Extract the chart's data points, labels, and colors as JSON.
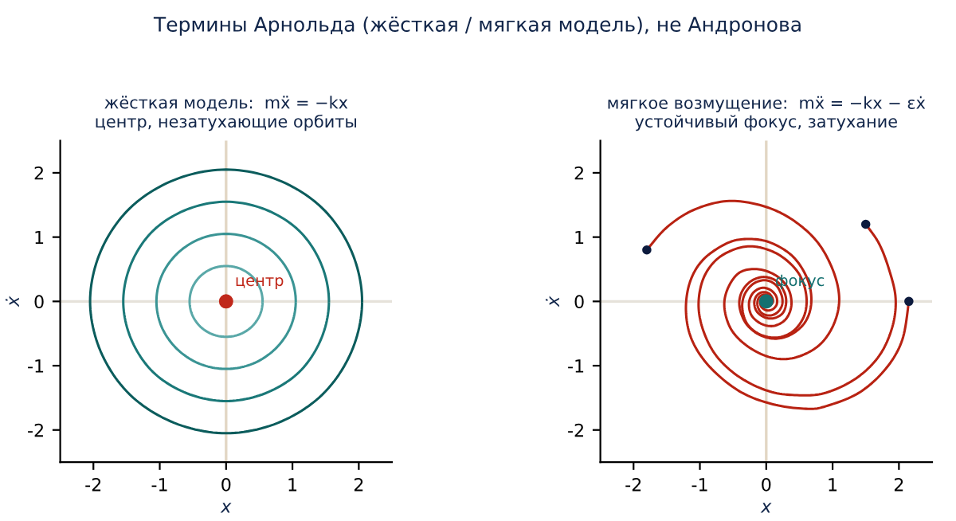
{
  "chart_data": [
    {
      "type": "line",
      "title": "жёсткая модель:  mẍ = −kx\nцентр, незатухающие орбиты",
      "xlabel": "x",
      "ylabel": "ẋ",
      "xlim": [
        -2.5,
        2.5
      ],
      "ylim": [
        -2.5,
        2.5
      ],
      "xticks": [
        -2,
        -1,
        0,
        1,
        2
      ],
      "yticks": [
        -2,
        -1,
        0,
        1,
        2
      ],
      "ref_lines": [
        {
          "axis": "x",
          "value": 0,
          "color": "#e2d6c4"
        },
        {
          "axis": "y",
          "value": 0,
          "color": "#e6e2da"
        }
      ],
      "annotations": [
        "Термины Арнольда (жёсткая / мягкая модель), не Андронова",
        {
          "text": "центр",
          "x": 0,
          "y": 0
        }
      ],
      "series": [
        {
          "type": "line",
          "color": "#5aa8a8",
          "x": [
            0.55,
            0.51,
            0.39,
            0.21,
            0,
            -0.21,
            -0.39,
            -0.51,
            -0.55,
            -0.51,
            -0.39,
            -0.21,
            0,
            0.21,
            0.39,
            0.51,
            0.55
          ],
          "values": [
            0,
            0.21,
            0.39,
            0.51,
            0.55,
            0.51,
            0.39,
            0.21,
            0,
            -0.21,
            -0.39,
            -0.51,
            -0.55,
            -0.51,
            -0.39,
            -0.21,
            0
          ]
        },
        {
          "type": "line",
          "color": "#3a9494",
          "x": [
            1.05,
            0.97,
            0.74,
            0.4,
            0,
            -0.4,
            -0.74,
            -0.97,
            -1.05,
            -0.97,
            -0.74,
            -0.4,
            0,
            0.4,
            0.74,
            0.97,
            1.05
          ],
          "values": [
            0,
            0.4,
            0.74,
            0.97,
            1.05,
            0.97,
            0.74,
            0.4,
            0,
            -0.4,
            -0.74,
            -0.97,
            -1.05,
            -0.97,
            -0.74,
            -0.4,
            0
          ]
        },
        {
          "type": "line",
          "color": "#1a7878",
          "x": [
            1.55,
            1.43,
            1.1,
            0.59,
            0,
            -0.59,
            -1.1,
            -1.43,
            -1.55,
            -1.43,
            -1.1,
            -0.59,
            0,
            0.59,
            1.1,
            1.43,
            1.55
          ],
          "values": [
            0,
            0.59,
            1.1,
            1.43,
            1.55,
            1.43,
            1.1,
            0.59,
            0,
            -0.59,
            -1.1,
            -1.43,
            -1.55,
            -1.43,
            -1.1,
            -0.59,
            0
          ]
        },
        {
          "type": "line",
          "color": "#0b5c5c",
          "x": [
            2.05,
            1.89,
            1.45,
            0.78,
            0,
            -0.78,
            -1.45,
            -1.89,
            -2.05,
            -1.89,
            -1.45,
            -0.78,
            0,
            0.78,
            1.45,
            1.89,
            2.05
          ],
          "values": [
            0,
            0.78,
            1.45,
            1.89,
            2.05,
            1.89,
            1.45,
            0.78,
            0,
            -0.78,
            -1.45,
            -1.89,
            -2.05,
            -1.89,
            -1.45,
            -0.78,
            0
          ]
        },
        {
          "type": "scatter",
          "marker": "circle",
          "color": "#c0281a",
          "x": [
            0
          ],
          "values": [
            0
          ]
        }
      ]
    },
    {
      "type": "line",
      "title": "мягкое возмущение:  mẍ = −kx − εẋ\nустойчивый фокус, затухание",
      "xlabel": "x",
      "ylabel": "ẋ",
      "xlim": [
        -2.5,
        2.5
      ],
      "ylim": [
        -2.5,
        2.5
      ],
      "xticks": [
        -2,
        -1,
        0,
        1,
        2
      ],
      "yticks": [
        -2,
        -1,
        0,
        1,
        2
      ],
      "ref_lines": [
        {
          "axis": "x",
          "value": 0,
          "color": "#e2d6c4"
        },
        {
          "axis": "y",
          "value": 0,
          "color": "#e6e2da"
        }
      ],
      "annotations": [
        {
          "text": "фокус",
          "x": 0,
          "y": 0
        }
      ],
      "series": [
        {
          "type": "line",
          "color": "#b82212",
          "x": [
            2.15,
            2.05,
            1.8,
            1.4,
            0.9,
            0.6,
            0.1,
            -0.4,
            -0.85,
            -1.12,
            -1.21,
            -1.15,
            -0.95,
            -0.6,
            -0.3,
            0.05,
            0.4,
            0.62,
            0.68,
            0.6,
            0.4,
            0.15,
            -0.1,
            -0.3,
            -0.4,
            -0.38,
            -0.25,
            -0.05,
            0.15,
            0.27,
            0.3,
            0.25,
            0.12,
            -0.02,
            -0.14,
            -0.18,
            -0.15,
            -0.07,
            0.03,
            0.09,
            0.1,
            0.06,
            0.01,
            -0.03,
            -0.03,
            0
          ],
          "values": [
            0,
            -0.6,
            -1.05,
            -1.42,
            -1.63,
            -1.67,
            -1.6,
            -1.4,
            -1.02,
            -0.6,
            -0.15,
            0.3,
            0.65,
            0.9,
            0.97,
            0.92,
            0.7,
            0.35,
            0,
            -0.3,
            -0.5,
            -0.58,
            -0.52,
            -0.35,
            -0.1,
            0.12,
            0.3,
            0.38,
            0.32,
            0.15,
            -0.02,
            -0.18,
            -0.26,
            -0.25,
            -0.16,
            -0.03,
            0.08,
            0.14,
            0.13,
            0.06,
            -0.01,
            -0.06,
            -0.07,
            -0.04,
            0,
            0.01
          ]
        },
        {
          "type": "line",
          "color": "#b82212",
          "x": [
            1.5,
            1.7,
            1.85,
            1.95,
            1.9,
            1.7,
            1.35,
            0.9,
            0.5,
            0.05,
            -0.4,
            -0.75,
            -0.95,
            -1.02,
            -0.95,
            -0.75,
            -0.45,
            -0.15,
            0.2,
            0.48,
            0.6,
            0.58,
            0.42,
            0.18,
            -0.08,
            -0.28,
            -0.36,
            -0.33,
            -0.2,
            -0.02,
            0.14,
            0.23,
            0.24,
            0.17,
            0.05,
            -0.07,
            -0.13,
            -0.12,
            -0.06,
            0.02,
            0.07,
            0.07,
            0.03,
            -0.01,
            -0.02,
            0
          ],
          "values": [
            1.2,
            0.9,
            0.5,
            0.05,
            -0.4,
            -0.85,
            -1.2,
            -1.42,
            -1.46,
            -1.4,
            -1.18,
            -0.85,
            -0.45,
            -0.05,
            0.35,
            0.65,
            0.82,
            0.85,
            0.72,
            0.45,
            0.12,
            -0.2,
            -0.45,
            -0.56,
            -0.52,
            -0.36,
            -0.12,
            0.1,
            0.27,
            0.33,
            0.26,
            0.1,
            -0.05,
            -0.17,
            -0.22,
            -0.18,
            -0.07,
            0.04,
            0.1,
            0.1,
            0.04,
            -0.02,
            -0.05,
            -0.04,
            0,
            0.01
          ]
        },
        {
          "type": "line",
          "color": "#b82212",
          "x": [
            -1.8,
            -1.5,
            -1.1,
            -0.6,
            -0.1,
            0.35,
            0.75,
            1.0,
            1.1,
            1.02,
            0.8,
            0.45,
            0.1,
            -0.25,
            -0.52,
            -0.63,
            -0.58,
            -0.4,
            -0.12,
            0.15,
            0.33,
            0.38,
            0.3,
            0.12,
            -0.07,
            -0.22,
            -0.26,
            -0.2,
            -0.07,
            0.06,
            0.15,
            0.16,
            0.1,
            0.01,
            -0.07,
            -0.09,
            -0.06,
            0,
            0.04,
            0.04,
            0.01,
            0
          ],
          "values": [
            0.8,
            1.15,
            1.42,
            1.56,
            1.5,
            1.3,
            0.95,
            0.5,
            0.05,
            -0.35,
            -0.68,
            -0.87,
            -0.88,
            -0.72,
            -0.45,
            -0.1,
            0.2,
            0.45,
            0.5,
            0.4,
            0.2,
            -0.05,
            -0.27,
            -0.38,
            -0.35,
            -0.22,
            -0.03,
            0.13,
            0.21,
            0.18,
            0.08,
            -0.04,
            -0.12,
            -0.14,
            -0.09,
            -0.01,
            0.05,
            0.07,
            0.04,
            -0.01,
            -0.03,
            0
          ]
        },
        {
          "type": "scatter",
          "marker": "circle",
          "color": "#0d1b3e",
          "x": [
            2.15,
            1.5,
            -1.8
          ],
          "values": [
            0,
            1.2,
            0.8
          ]
        },
        {
          "type": "scatter",
          "marker": "circle",
          "color": "#147070",
          "x": [
            0
          ],
          "values": [
            0
          ]
        }
      ]
    }
  ]
}
